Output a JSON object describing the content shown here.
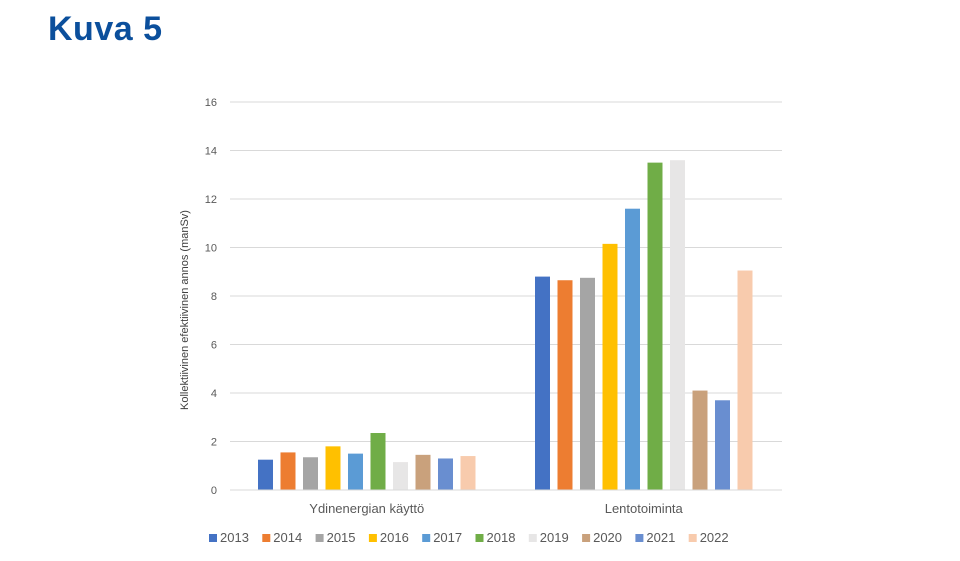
{
  "page": {
    "title": "Kuva 5"
  },
  "colors": {
    "title": "#0b4f9c",
    "gridline": "#d9d9d9",
    "axis_text": "#595959"
  },
  "chart_data": {
    "type": "bar",
    "title": "",
    "xlabel": "",
    "ylabel": "Kollektiivinen efektiivinen annos (manSv)",
    "ylim": [
      0,
      16
    ],
    "yticks": [
      0,
      2,
      4,
      6,
      8,
      10,
      12,
      14,
      16
    ],
    "grid": true,
    "legend_position": "bottom",
    "categories": [
      "Ydinenergian käyttö",
      "Lentotoiminta"
    ],
    "series": [
      {
        "name": "2013",
        "color": "#4472c4",
        "values": [
          1.25,
          8.8
        ]
      },
      {
        "name": "2014",
        "color": "#ed7d31",
        "values": [
          1.55,
          8.65
        ]
      },
      {
        "name": "2015",
        "color": "#a5a5a5",
        "values": [
          1.35,
          8.75
        ]
      },
      {
        "name": "2016",
        "color": "#ffc000",
        "values": [
          1.8,
          10.15
        ]
      },
      {
        "name": "2017",
        "color": "#5b9bd5",
        "values": [
          1.5,
          11.6
        ]
      },
      {
        "name": "2018",
        "color": "#70ad47",
        "values": [
          2.35,
          13.5
        ]
      },
      {
        "name": "2019",
        "color": "#e7e6e6",
        "values": [
          1.15,
          13.6
        ]
      },
      {
        "name": "2020",
        "color": "#c9a17c",
        "values": [
          1.45,
          4.1
        ]
      },
      {
        "name": "2021",
        "color": "#698ed0",
        "values": [
          1.3,
          3.7
        ]
      },
      {
        "name": "2022",
        "color": "#f8cbad",
        "values": [
          1.4,
          9.05
        ]
      }
    ]
  }
}
